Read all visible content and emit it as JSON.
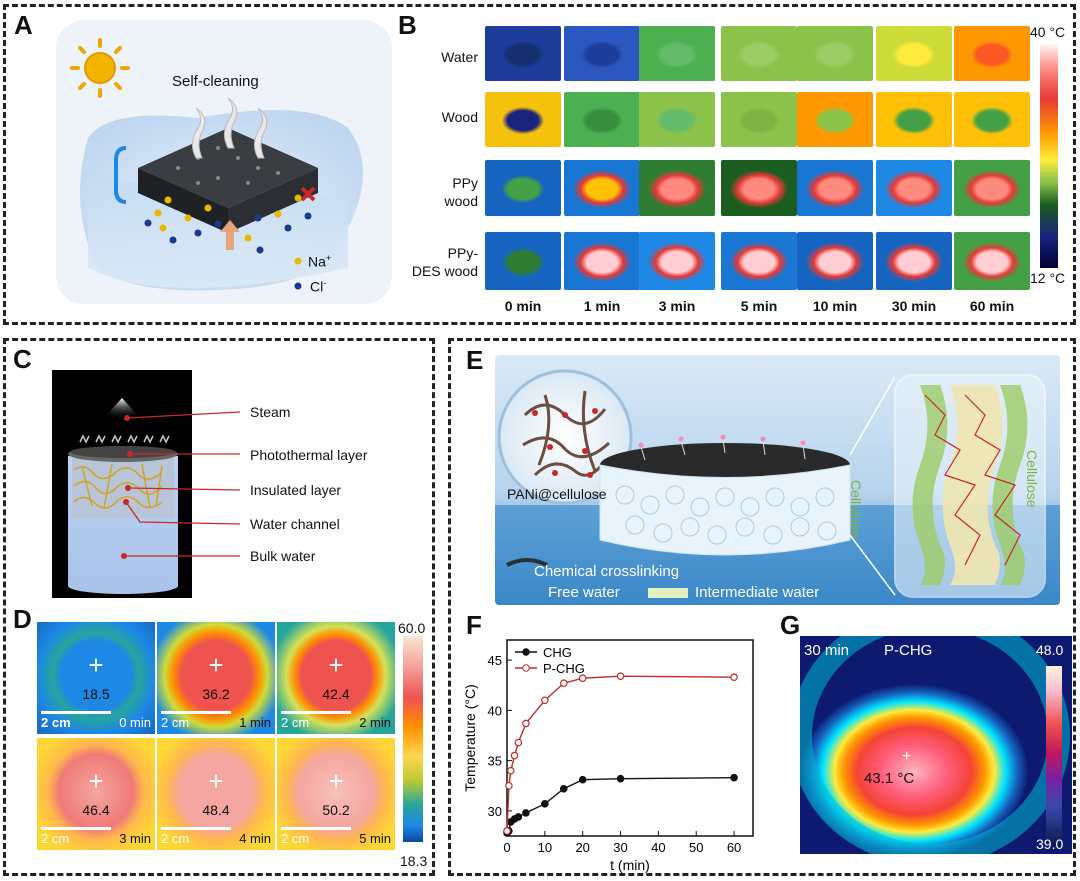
{
  "panelA": {
    "letter": "A",
    "title": "Self-cleaning",
    "legend": [
      {
        "label": "Na",
        "sup": "+"
      },
      {
        "label": "Cl",
        "sup": "-"
      }
    ]
  },
  "panelB": {
    "letter": "B",
    "rows": [
      [
        "Water"
      ],
      [
        "Wood"
      ],
      [
        "PPy",
        "wood"
      ],
      [
        "PPy-",
        "DES wood"
      ]
    ],
    "times": [
      "0 min",
      "1 min",
      "3 min",
      "5 min",
      "10 min",
      "30 min",
      "60 min"
    ],
    "scale_max": "40 °C",
    "scale_min": "12 °C"
  },
  "panelC": {
    "letter": "C",
    "labels": [
      "Steam",
      "Photothermal layer",
      "Insulated layer",
      "Water channel",
      "Bulk water"
    ]
  },
  "panelD": {
    "letter": "D",
    "cells": [
      {
        "value": "18.5",
        "scale": "2 cm",
        "time": "0 min"
      },
      {
        "value": "36.2",
        "scale": "2 cm",
        "time": "1 min"
      },
      {
        "value": "42.4",
        "scale": "2 cm",
        "time": "2 min"
      },
      {
        "value": "46.4",
        "scale": "2 cm",
        "time": "3 min"
      },
      {
        "value": "48.4",
        "scale": "2 cm",
        "time": "4 min"
      },
      {
        "value": "50.2",
        "scale": "2 cm",
        "time": "5 min"
      }
    ],
    "scale_max": "60.0",
    "scale_min": "18.3"
  },
  "panelE": {
    "letter": "E",
    "label_pani": "PANi@cellulose",
    "label_crosslink": "Chemical crosslinking",
    "label_free": "Free water",
    "label_inter": "Intermediate water",
    "label_cell": "Cellulose"
  },
  "panelF": {
    "letter": "F",
    "chart_data": {
      "type": "line",
      "xlabel": "t (min)",
      "ylabel": "Temperature (°C)",
      "xlim": [
        0,
        65
      ],
      "ylim": [
        27.5,
        47
      ],
      "xticks": [
        0,
        10,
        20,
        30,
        40,
        50,
        60
      ],
      "yticks": [
        30,
        35,
        40,
        45
      ],
      "series": [
        {
          "name": "CHG",
          "color": "#111111",
          "x": [
            0,
            0.5,
            1,
            2,
            3,
            5,
            10,
            15,
            20,
            30,
            60
          ],
          "y": [
            27.8,
            28.0,
            28.9,
            29.2,
            29.4,
            29.8,
            30.7,
            32.2,
            33.1,
            33.2,
            33.3
          ]
        },
        {
          "name": "P-CHG",
          "color": "#c62828",
          "x": [
            0,
            0.5,
            1,
            2,
            3,
            5,
            10,
            15,
            20,
            30,
            60
          ],
          "y": [
            28.0,
            32.5,
            34.0,
            35.5,
            36.8,
            38.7,
            41.0,
            42.7,
            43.2,
            43.4,
            43.3
          ]
        }
      ]
    }
  },
  "panelG": {
    "letter": "G",
    "time": "30 min",
    "sample": "P-CHG",
    "value": "43.1  °C",
    "scale_max": "48.0",
    "scale_min": "39.0"
  }
}
